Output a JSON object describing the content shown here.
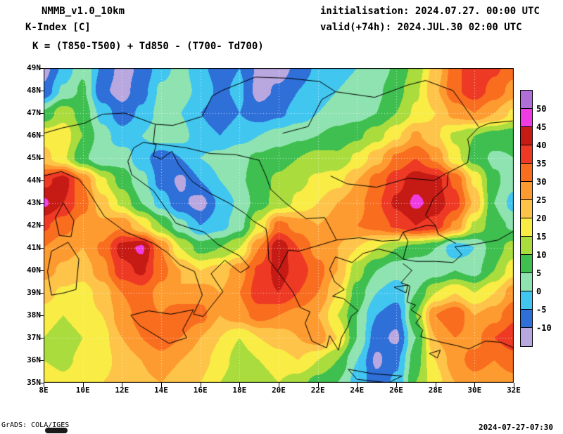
{
  "header": {
    "model": "NMMB_v1.0_10km",
    "field": "K-Index [C]",
    "formula": "K = (T850-T500) + Td850 - (T700- Td700)",
    "initialisation": "initialisation: 2024.07.27. 00:00 UTC",
    "valid": "valid(+74h): 2024.JUL.30 02:00 UTC"
  },
  "footer": {
    "credit": "GrADS: COLA/IGES",
    "timestamp": "2024-07-27-07:30"
  },
  "axes": {
    "y_labels": [
      "49N",
      "48N",
      "47N",
      "46N",
      "45N",
      "44N",
      "43N",
      "42N",
      "41N",
      "40N",
      "39N",
      "38N",
      "37N",
      "36N",
      "35N"
    ],
    "x_labels": [
      "8E",
      "10E",
      "12E",
      "14E",
      "16E",
      "18E",
      "20E",
      "22E",
      "24E",
      "26E",
      "28E",
      "30E",
      "32E"
    ]
  },
  "colorbar": {
    "labels": [
      "50",
      "45",
      "40",
      "35",
      "30",
      "25",
      "20",
      "15",
      "10",
      "5",
      "0",
      "-5",
      "-10"
    ]
  },
  "chart_data": {
    "type": "heatmap",
    "title": "K-Index [C]",
    "units": "C",
    "lon_range": [
      8,
      32
    ],
    "lat_range": [
      35,
      49
    ],
    "grid_step_deg": 1,
    "levels": [
      -10,
      -5,
      0,
      5,
      10,
      15,
      20,
      25,
      30,
      35,
      40,
      45,
      50
    ],
    "palette_low_to_high": [
      "#b9a7e0",
      "#2e6fd8",
      "#41c6f0",
      "#8fe3b0",
      "#3fbf4f",
      "#aadc3e",
      "#f8ec45",
      "#fdc449",
      "#fd9b30",
      "#f96d1f",
      "#ee3a24",
      "#c61a14",
      "#ee3ce2",
      "#b06fd6"
    ],
    "gridline_color": "#ffffff",
    "lats": [
      49,
      48,
      47,
      46,
      45,
      44,
      43,
      42,
      41,
      40,
      39,
      38,
      37,
      36,
      35
    ],
    "lons": [
      8,
      9,
      10,
      11,
      12,
      13,
      14,
      15,
      16,
      17,
      18,
      19,
      20,
      21,
      22,
      23,
      24,
      25,
      26,
      27,
      28,
      29,
      30,
      31,
      32
    ],
    "values": [
      [
        -12,
        -4,
        4,
        -6,
        -12,
        -9,
        -2,
        2,
        -4,
        -7,
        -5,
        -11,
        -13,
        -8,
        -4,
        -2,
        0,
        2,
        6,
        12,
        22,
        33,
        40,
        36,
        32
      ],
      [
        -9,
        1,
        6,
        -9,
        -12,
        -7,
        1,
        3,
        -2,
        -6,
        -4,
        -12,
        -9,
        -5,
        -2,
        0,
        2,
        4,
        8,
        14,
        24,
        34,
        38,
        33,
        28
      ],
      [
        6,
        13,
        8,
        -2,
        -8,
        -4,
        2,
        0,
        -5,
        -8,
        -5,
        -8,
        -6,
        -3,
        0,
        2,
        3,
        5,
        10,
        16,
        20,
        27,
        30,
        25,
        19
      ],
      [
        18,
        18,
        10,
        2,
        -3,
        0,
        3,
        2,
        -3,
        -5,
        -2,
        0,
        2,
        4,
        5,
        7,
        9,
        13,
        19,
        26,
        21,
        14,
        10,
        8,
        7
      ],
      [
        22,
        16,
        6,
        1,
        3,
        -3,
        -8,
        -5,
        0,
        2,
        4,
        6,
        8,
        10,
        12,
        11,
        16,
        23,
        31,
        35,
        29,
        17,
        8,
        4,
        5
      ],
      [
        38,
        43,
        30,
        16,
        8,
        2,
        -7,
        -11,
        -5,
        0,
        4,
        8,
        11,
        14,
        16,
        18,
        25,
        32,
        38,
        43,
        42,
        34,
        19,
        6,
        2
      ],
      [
        46,
        40,
        32,
        22,
        14,
        5,
        -2,
        -9,
        -12,
        -4,
        1,
        8,
        12,
        16,
        20,
        25,
        28,
        34,
        41,
        46,
        43,
        37,
        24,
        5,
        -2
      ],
      [
        36,
        32,
        28,
        26,
        29,
        20,
        10,
        2,
        -5,
        -2,
        3,
        16,
        32,
        28,
        25,
        28,
        30,
        32,
        36,
        40,
        38,
        29,
        14,
        7,
        4
      ],
      [
        30,
        27,
        25,
        31,
        42,
        46,
        30,
        15,
        8,
        10,
        15,
        30,
        44,
        35,
        28,
        25,
        20,
        15,
        10,
        8,
        5,
        -4,
        0,
        8,
        12
      ],
      [
        27,
        24,
        22,
        28,
        38,
        41,
        32,
        25,
        20,
        22,
        28,
        36,
        42,
        38,
        32,
        25,
        12,
        5,
        2,
        0,
        2,
        5,
        3,
        10,
        18
      ],
      [
        22,
        19,
        18,
        22,
        30,
        33,
        28,
        25,
        28,
        25,
        30,
        38,
        40,
        35,
        30,
        20,
        8,
        0,
        -3,
        5,
        15,
        20,
        15,
        20,
        28
      ],
      [
        18,
        15,
        18,
        20,
        28,
        32,
        30,
        35,
        32,
        25,
        28,
        32,
        30,
        28,
        25,
        15,
        5,
        -5,
        -8,
        10,
        30,
        35,
        25,
        28,
        34
      ],
      [
        15,
        12,
        15,
        18,
        25,
        30,
        33,
        30,
        25,
        20,
        15,
        20,
        22,
        25,
        28,
        20,
        5,
        -8,
        -11,
        5,
        25,
        30,
        28,
        35,
        38
      ],
      [
        15,
        14,
        16,
        18,
        22,
        25,
        28,
        25,
        22,
        18,
        12,
        15,
        18,
        20,
        15,
        10,
        0,
        -11,
        -6,
        8,
        20,
        28,
        32,
        30,
        33
      ],
      [
        18,
        16,
        18,
        20,
        22,
        24,
        25,
        22,
        20,
        15,
        10,
        12,
        15,
        12,
        8,
        5,
        -2,
        -8,
        -4,
        10,
        18,
        25,
        28,
        26,
        28
      ]
    ],
    "basemap": {
      "coastlines": [
        [
          [
            8,
            44.2
          ],
          [
            8.9,
            44.4
          ],
          [
            9.8,
            44.05
          ],
          [
            10.3,
            43.5
          ],
          [
            11.1,
            42.4
          ],
          [
            12.2,
            41.7
          ],
          [
            13.6,
            41.2
          ],
          [
            14.3,
            40.8
          ],
          [
            14.95,
            40.25
          ],
          [
            15.7,
            39.95
          ],
          [
            16.1,
            38.9
          ],
          [
            15.65,
            38.05
          ],
          [
            16.15,
            37.95
          ],
          [
            16.6,
            38.45
          ],
          [
            17.15,
            39.05
          ],
          [
            16.55,
            39.85
          ],
          [
            17.25,
            40.45
          ],
          [
            18.05,
            39.9
          ],
          [
            18.5,
            40.15
          ],
          [
            18.0,
            40.65
          ],
          [
            16.9,
            41.15
          ],
          [
            16.2,
            41.7
          ],
          [
            15.4,
            41.9
          ],
          [
            14.75,
            42.1
          ],
          [
            13.6,
            43.55
          ],
          [
            12.5,
            44.25
          ],
          [
            12.3,
            44.85
          ],
          [
            12.6,
            45.45
          ],
          [
            13.1,
            45.7
          ],
          [
            13.75,
            45.6
          ]
        ],
        [
          [
            13.75,
            45.6
          ],
          [
            13.6,
            45.1
          ],
          [
            14.0,
            44.95
          ],
          [
            14.55,
            45.3
          ],
          [
            14.9,
            44.7
          ],
          [
            15.6,
            43.95
          ],
          [
            16.45,
            43.45
          ],
          [
            17.45,
            43.0
          ],
          [
            18.25,
            42.55
          ],
          [
            18.7,
            42.2
          ],
          [
            19.35,
            41.85
          ],
          [
            19.45,
            41.3
          ],
          [
            19.5,
            40.45
          ],
          [
            19.95,
            39.95
          ],
          [
            20.25,
            39.6
          ],
          [
            20.75,
            39.0
          ],
          [
            21.1,
            38.35
          ],
          [
            21.6,
            38.15
          ],
          [
            21.35,
            37.65
          ],
          [
            21.7,
            36.85
          ],
          [
            22.45,
            36.55
          ],
          [
            22.6,
            37.1
          ],
          [
            23.05,
            36.45
          ],
          [
            23.2,
            37.0
          ],
          [
            23.5,
            37.45
          ],
          [
            23.7,
            37.95
          ],
          [
            24.05,
            38.2
          ],
          [
            23.3,
            38.75
          ],
          [
            22.75,
            38.85
          ],
          [
            23.35,
            39.15
          ],
          [
            22.85,
            39.5
          ],
          [
            22.6,
            40.05
          ],
          [
            22.9,
            40.6
          ],
          [
            23.75,
            40.35
          ],
          [
            24.3,
            40.75
          ],
          [
            25.1,
            40.95
          ],
          [
            26.0,
            40.75
          ],
          [
            26.35,
            40.5
          ]
        ],
        [
          [
            26.35,
            40.5
          ],
          [
            27.0,
            40.4
          ],
          [
            28.0,
            40.4
          ],
          [
            28.9,
            40.35
          ],
          [
            29.35,
            40.7
          ],
          [
            29.0,
            41.05
          ],
          [
            29.95,
            41.15
          ],
          [
            31.2,
            41.35
          ],
          [
            32,
            41.75
          ]
        ],
        [
          [
            29.05,
            41.2
          ],
          [
            28.15,
            41.6
          ],
          [
            28.0,
            42.0
          ],
          [
            27.5,
            42.45
          ],
          [
            27.9,
            43.2
          ],
          [
            28.6,
            43.75
          ],
          [
            28.65,
            44.35
          ],
          [
            29.65,
            44.8
          ],
          [
            29.75,
            45.4
          ],
          [
            29.65,
            45.85
          ],
          [
            30.2,
            46.35
          ],
          [
            30.75,
            46.55
          ],
          [
            31.95,
            46.65
          ]
        ],
        [
          [
            26.35,
            40.3
          ],
          [
            26.8,
            40.0
          ],
          [
            26.25,
            39.45
          ],
          [
            26.7,
            39.3
          ],
          [
            26.55,
            38.6
          ],
          [
            27.0,
            38.45
          ],
          [
            26.75,
            38.25
          ],
          [
            27.25,
            37.95
          ],
          [
            27.0,
            37.65
          ],
          [
            27.35,
            37.35
          ],
          [
            27.25,
            37.05
          ],
          [
            28.3,
            36.8
          ],
          [
            29.1,
            36.65
          ],
          [
            29.7,
            36.5
          ],
          [
            30.55,
            36.85
          ],
          [
            31.35,
            36.8
          ],
          [
            32,
            36.55
          ]
        ],
        [
          [
            9.0,
            43.0
          ],
          [
            9.55,
            42.2
          ],
          [
            9.4,
            41.5
          ],
          [
            8.8,
            41.55
          ],
          [
            8.6,
            42.35
          ],
          [
            9.0,
            43.0
          ]
        ],
        [
          [
            8.4,
            40.85
          ],
          [
            9.25,
            41.25
          ],
          [
            9.8,
            40.5
          ],
          [
            9.65,
            39.15
          ],
          [
            9.05,
            39.0
          ],
          [
            8.4,
            38.9
          ],
          [
            8.2,
            39.95
          ],
          [
            8.4,
            40.85
          ]
        ],
        [
          [
            12.45,
            38.0
          ],
          [
            13.35,
            38.2
          ],
          [
            14.5,
            38.05
          ],
          [
            15.65,
            38.25
          ],
          [
            15.1,
            37.35
          ],
          [
            15.3,
            37.0
          ],
          [
            14.4,
            36.75
          ],
          [
            12.9,
            37.55
          ],
          [
            12.45,
            38.0
          ]
        ],
        [
          [
            23.55,
            35.6
          ],
          [
            24.8,
            35.4
          ],
          [
            26.3,
            35.3
          ],
          [
            25.6,
            35.0
          ],
          [
            24.0,
            35.15
          ],
          [
            23.55,
            35.6
          ]
        ],
        [
          [
            25.9,
            39.25
          ],
          [
            26.6,
            39.35
          ],
          [
            26.5,
            39.0
          ],
          [
            25.9,
            39.25
          ]
        ],
        [
          [
            27.7,
            36.3
          ],
          [
            28.25,
            36.45
          ],
          [
            28.1,
            36.1
          ],
          [
            27.7,
            36.3
          ]
        ]
      ],
      "borders": [
        [
          [
            8,
            46.1
          ],
          [
            9.0,
            46.35
          ],
          [
            10.1,
            46.55
          ],
          [
            11.0,
            46.95
          ],
          [
            12.15,
            47.0
          ],
          [
            13.7,
            46.5
          ],
          [
            13.6,
            45.65
          ]
        ],
        [
          [
            13.7,
            46.5
          ],
          [
            14.6,
            46.45
          ],
          [
            16.1,
            46.85
          ],
          [
            16.6,
            47.75
          ],
          [
            17.1,
            48.0
          ],
          [
            18.8,
            48.6
          ],
          [
            20.5,
            48.55
          ],
          [
            22.1,
            48.4
          ],
          [
            22.9,
            47.95
          ]
        ],
        [
          [
            22.9,
            47.95
          ],
          [
            24.9,
            47.7
          ],
          [
            26.6,
            48.25
          ],
          [
            27.5,
            48.45
          ],
          [
            28.9,
            48.0
          ],
          [
            30.2,
            46.4
          ]
        ],
        [
          [
            20.2,
            46.1
          ],
          [
            21.5,
            46.4
          ],
          [
            22.2,
            47.6
          ],
          [
            22.9,
            47.95
          ]
        ],
        [
          [
            22.65,
            44.2
          ],
          [
            23.5,
            43.85
          ],
          [
            25.0,
            43.7
          ],
          [
            26.6,
            44.1
          ],
          [
            27.95,
            44.0
          ],
          [
            28.6,
            44.35
          ]
        ],
        [
          [
            19.0,
            44.9
          ],
          [
            19.35,
            44.2
          ],
          [
            19.6,
            43.6
          ],
          [
            20.35,
            43.0
          ],
          [
            21.4,
            42.3
          ],
          [
            22.35,
            42.35
          ],
          [
            22.95,
            41.35
          ],
          [
            24.1,
            41.45
          ],
          [
            25.3,
            41.3
          ],
          [
            26.15,
            41.35
          ],
          [
            26.35,
            41.7
          ],
          [
            27.55,
            42.0
          ],
          [
            28.0,
            41.97
          ]
        ],
        [
          [
            26.35,
            41.7
          ],
          [
            26.6,
            41.3
          ],
          [
            26.35,
            40.5
          ]
        ],
        [
          [
            22.95,
            41.35
          ],
          [
            22.0,
            41.1
          ],
          [
            21.0,
            40.85
          ],
          [
            20.5,
            40.9
          ],
          [
            19.95,
            39.95
          ]
        ],
        [
          [
            13.6,
            45.65
          ],
          [
            15.3,
            45.45
          ],
          [
            16.5,
            45.2
          ],
          [
            17.8,
            45.15
          ],
          [
            19.0,
            44.9
          ]
        ]
      ]
    }
  }
}
